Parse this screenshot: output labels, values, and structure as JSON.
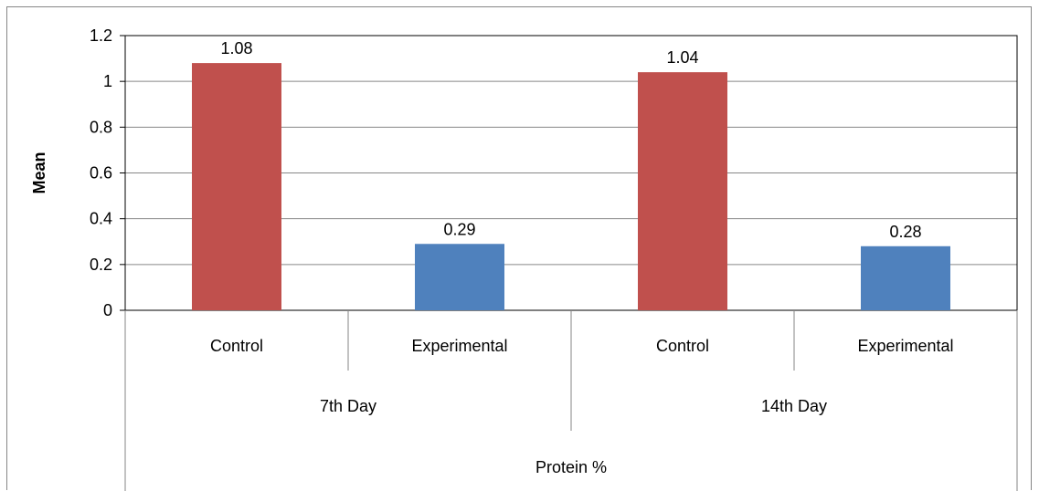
{
  "chart_data": {
    "type": "bar",
    "ylabel": "Mean",
    "xlabel": "",
    "ylim": [
      0,
      1.2
    ],
    "yticks": [
      "0",
      "0.2",
      "0.4",
      "0.6",
      "0.8",
      "1",
      "1.2"
    ],
    "grid": true,
    "legend": "none",
    "categories": [
      {
        "label": "Control",
        "group": "7th Day",
        "value": 1.08,
        "value_label": "1.08",
        "color": "#C0504D"
      },
      {
        "label": "Experimental",
        "group": "7th Day",
        "value": 0.29,
        "value_label": "0.29",
        "color": "#4F81BD"
      },
      {
        "label": "Control",
        "group": "14th Day",
        "value": 1.04,
        "value_label": "1.04",
        "color": "#C0504D"
      },
      {
        "label": "Experimental",
        "group": "14th Day",
        "value": 0.28,
        "value_label": "0.28",
        "color": "#4F81BD"
      }
    ],
    "groups": [
      "7th Day",
      "14th Day"
    ],
    "supergroup": "Protein %",
    "colors": {
      "control": "#C0504D",
      "experimental": "#4F81BD",
      "grid": "#868686",
      "axis": "#000000"
    }
  }
}
